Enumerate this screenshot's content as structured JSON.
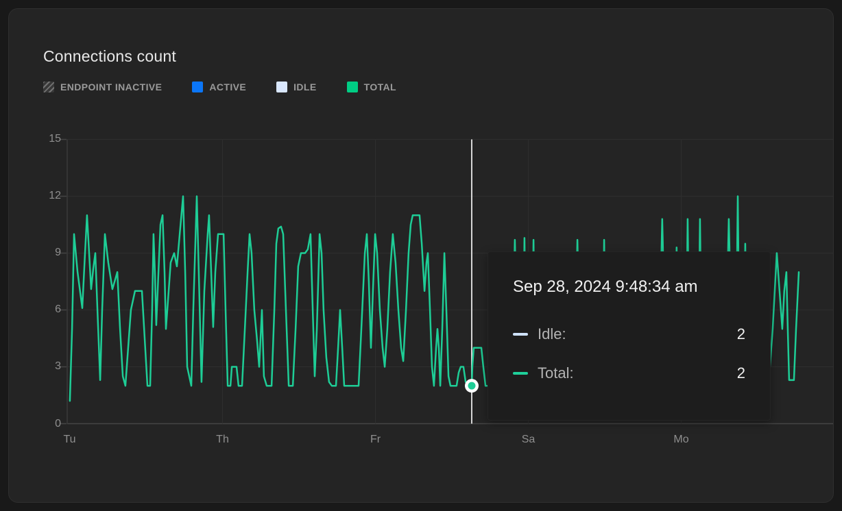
{
  "card": {
    "title": "Connections count"
  },
  "legend": {
    "items": [
      {
        "label": "ENDPOINT INACTIVE",
        "swatch": "hatched",
        "color": "#6f6f6f"
      },
      {
        "label": "ACTIVE",
        "swatch": "solid",
        "color": "#0b76f8"
      },
      {
        "label": "IDLE",
        "swatch": "solid",
        "color": "#d9e7fd"
      },
      {
        "label": "TOTAL",
        "swatch": "solid",
        "color": "#00cd84"
      }
    ]
  },
  "tooltip": {
    "title": "Sep 28, 2024 9:48:34 am",
    "rows": [
      {
        "label": "Idle:",
        "value": "2",
        "color": "#cfe2fc"
      },
      {
        "label": "Total:",
        "value": "2",
        "color": "#1fd09a"
      }
    ]
  },
  "axes": {
    "y_ticks": [
      0,
      3,
      6,
      9,
      12,
      15
    ],
    "x_ticks": [
      {
        "label": "Tu",
        "pos": 0
      },
      {
        "label": "Th",
        "pos": 1
      },
      {
        "label": "Fr",
        "pos": 2
      },
      {
        "label": "Sa",
        "pos": 3
      },
      {
        "label": "Mo",
        "pos": 4
      }
    ]
  },
  "colors": {
    "crosshair": "#d8d8d8",
    "grid": "#2e2e2e",
    "axis": "#454545",
    "line": "#1ecd96",
    "marker_ring": "#ffffff"
  },
  "chart_data": {
    "type": "line",
    "title": "Connections count",
    "xlabel": "",
    "ylabel": "",
    "ylim": [
      0,
      15
    ],
    "y_ticks": [
      0,
      3,
      6,
      9,
      12,
      15
    ],
    "x_tick_labels": [
      "Tu",
      "Th",
      "Fr",
      "Sa",
      "Mo"
    ],
    "x_unit": "x measured in axis-tick intervals: Tu=0, Th=1, Fr=2, Sa=3, Mo=4",
    "grid": true,
    "legend_position": "top",
    "legend_entries": [
      "ENDPOINT INACTIVE",
      "ACTIVE",
      "IDLE",
      "TOTAL"
    ],
    "selected_point": {
      "x": 2.63,
      "timestamp": "Sep 28, 2024 9:48:34 am",
      "series_values": {
        "Idle": 2,
        "Total": 2
      }
    },
    "series": [
      {
        "name": "Total",
        "color": "#1ecd96",
        "points": [
          [
            0.002,
            1.2
          ],
          [
            0.016,
            5
          ],
          [
            0.029,
            10
          ],
          [
            0.052,
            8
          ],
          [
            0.083,
            6.1
          ],
          [
            0.101,
            9
          ],
          [
            0.114,
            11
          ],
          [
            0.128,
            9
          ],
          [
            0.141,
            7.1
          ],
          [
            0.155,
            8.2
          ],
          [
            0.168,
            9
          ],
          [
            0.182,
            6
          ],
          [
            0.2,
            2.3
          ],
          [
            0.213,
            6
          ],
          [
            0.231,
            10
          ],
          [
            0.253,
            8.5
          ],
          [
            0.28,
            7.1
          ],
          [
            0.298,
            7.6
          ],
          [
            0.312,
            8
          ],
          [
            0.33,
            5
          ],
          [
            0.348,
            2.5
          ],
          [
            0.365,
            2
          ],
          [
            0.383,
            4
          ],
          [
            0.401,
            6
          ],
          [
            0.428,
            7
          ],
          [
            0.473,
            7
          ],
          [
            0.491,
            4.5
          ],
          [
            0.509,
            2
          ],
          [
            0.527,
            2
          ],
          [
            0.54,
            6
          ],
          [
            0.549,
            10
          ],
          [
            0.558,
            8
          ],
          [
            0.567,
            5.2
          ],
          [
            0.581,
            8
          ],
          [
            0.594,
            10.5
          ],
          [
            0.608,
            11
          ],
          [
            0.621,
            8
          ],
          [
            0.63,
            5
          ],
          [
            0.648,
            7
          ],
          [
            0.661,
            8.5
          ],
          [
            0.684,
            9
          ],
          [
            0.702,
            8.3
          ],
          [
            0.72,
            10
          ],
          [
            0.742,
            12
          ],
          [
            0.756,
            8
          ],
          [
            0.769,
            3
          ],
          [
            0.796,
            2
          ],
          [
            0.809,
            6
          ],
          [
            0.832,
            12
          ],
          [
            0.845,
            8
          ],
          [
            0.863,
            2.2
          ],
          [
            0.881,
            7
          ],
          [
            0.903,
            10
          ],
          [
            0.912,
            11
          ],
          [
            0.926,
            8
          ],
          [
            0.939,
            5.1
          ],
          [
            0.953,
            8
          ],
          [
            0.971,
            10
          ],
          [
            1.007,
            10
          ],
          [
            1.02,
            6
          ],
          [
            1.034,
            2
          ],
          [
            1.052,
            2
          ],
          [
            1.061,
            3
          ],
          [
            1.092,
            3
          ],
          [
            1.105,
            2
          ],
          [
            1.128,
            2
          ],
          [
            1.146,
            5
          ],
          [
            1.164,
            8
          ],
          [
            1.177,
            10
          ],
          [
            1.19,
            9
          ],
          [
            1.208,
            6
          ],
          [
            1.226,
            4.4
          ],
          [
            1.24,
            3
          ],
          [
            1.258,
            6
          ],
          [
            1.271,
            2.5
          ],
          [
            1.289,
            2
          ],
          [
            1.321,
            2
          ],
          [
            1.339,
            6
          ],
          [
            1.352,
            9.5
          ],
          [
            1.365,
            10.3
          ],
          [
            1.383,
            10.4
          ],
          [
            1.397,
            10
          ],
          [
            1.415,
            6
          ],
          [
            1.433,
            2
          ],
          [
            1.46,
            2
          ],
          [
            1.478,
            5
          ],
          [
            1.495,
            8.3
          ],
          [
            1.513,
            9
          ],
          [
            1.54,
            9
          ],
          [
            1.558,
            9.2
          ],
          [
            1.576,
            10
          ],
          [
            1.59,
            6
          ],
          [
            1.603,
            2.5
          ],
          [
            1.617,
            5
          ],
          [
            1.635,
            10
          ],
          [
            1.648,
            9
          ],
          [
            1.661,
            6
          ],
          [
            1.679,
            3.5
          ],
          [
            1.697,
            2.2
          ],
          [
            1.715,
            2
          ],
          [
            1.742,
            2
          ],
          [
            1.756,
            4
          ],
          [
            1.769,
            6
          ],
          [
            1.783,
            4
          ],
          [
            1.796,
            2
          ],
          [
            1.828,
            2
          ],
          [
            1.859,
            2
          ],
          [
            1.89,
            2
          ],
          [
            1.908,
            5
          ],
          [
            1.931,
            9
          ],
          [
            1.944,
            10
          ],
          [
            1.957,
            7.5
          ],
          [
            1.971,
            4
          ],
          [
            1.984,
            7
          ],
          [
            1.998,
            10
          ],
          [
            2.011,
            9
          ],
          [
            2.029,
            6
          ],
          [
            2.047,
            4
          ],
          [
            2.061,
            3
          ],
          [
            2.078,
            5
          ],
          [
            2.096,
            8
          ],
          [
            2.114,
            10
          ],
          [
            2.132,
            8.5
          ],
          [
            2.15,
            6
          ],
          [
            2.168,
            4
          ],
          [
            2.182,
            3.3
          ],
          [
            2.2,
            6
          ],
          [
            2.217,
            9
          ],
          [
            2.231,
            10.5
          ],
          [
            2.244,
            11
          ],
          [
            2.289,
            11
          ],
          [
            2.303,
            9.5
          ],
          [
            2.321,
            7
          ],
          [
            2.334,
            8.5
          ],
          [
            2.343,
            9
          ],
          [
            2.357,
            6
          ],
          [
            2.37,
            3
          ],
          [
            2.383,
            2
          ],
          [
            2.397,
            4
          ],
          [
            2.406,
            5
          ],
          [
            2.415,
            4
          ],
          [
            2.424,
            2
          ],
          [
            2.437,
            5
          ],
          [
            2.451,
            9
          ],
          [
            2.464,
            6
          ],
          [
            2.478,
            2.5
          ],
          [
            2.491,
            2
          ],
          [
            2.531,
            2
          ],
          [
            2.545,
            2.7
          ],
          [
            2.558,
            3
          ],
          [
            2.576,
            3
          ],
          [
            2.59,
            2.2
          ],
          [
            2.608,
            2
          ],
          [
            2.63,
            2
          ],
          [
            2.634,
            3
          ],
          [
            2.643,
            4
          ],
          [
            2.693,
            4
          ],
          [
            2.706,
            3
          ],
          [
            2.72,
            2
          ],
          [
            2.885,
            2
          ],
          [
            2.899,
            5
          ],
          [
            2.912,
            9.7
          ],
          [
            2.926,
            5
          ],
          [
            2.939,
            2
          ],
          [
            2.962,
            2
          ],
          [
            2.975,
            9.8
          ],
          [
            2.989,
            2
          ],
          [
            3.02,
            2
          ],
          [
            3.034,
            9.7
          ],
          [
            3.047,
            2
          ],
          [
            3.294,
            2
          ],
          [
            3.307,
            5
          ],
          [
            3.321,
            9.7
          ],
          [
            3.334,
            5
          ],
          [
            3.348,
            2
          ],
          [
            3.482,
            2
          ],
          [
            3.496,
            9.7
          ],
          [
            3.509,
            2
          ],
          [
            3.85,
            2
          ],
          [
            3.863,
            6
          ],
          [
            3.876,
            10.8
          ],
          [
            3.89,
            6
          ],
          [
            3.903,
            2
          ],
          [
            3.957,
            2
          ],
          [
            3.97,
            9.3
          ],
          [
            3.984,
            2
          ],
          [
            4.029,
            2
          ],
          [
            4.042,
            10.8
          ],
          [
            4.056,
            2
          ],
          [
            4.11,
            2
          ],
          [
            4.123,
            10.8
          ],
          [
            4.136,
            2
          ],
          [
            4.284,
            2
          ],
          [
            4.298,
            6
          ],
          [
            4.311,
            10.8
          ],
          [
            4.325,
            6
          ],
          [
            4.338,
            2
          ],
          [
            4.356,
            2
          ],
          [
            4.37,
            12
          ],
          [
            4.383,
            2
          ],
          [
            4.405,
            2
          ],
          [
            4.419,
            9.5
          ],
          [
            4.432,
            2
          ],
          [
            4.473,
            2
          ],
          [
            4.571,
            2
          ],
          [
            4.598,
            5
          ],
          [
            4.625,
            9
          ],
          [
            4.643,
            7
          ],
          [
            4.661,
            5
          ],
          [
            4.674,
            7
          ],
          [
            4.688,
            8
          ],
          [
            4.697,
            5
          ],
          [
            4.706,
            2.3
          ],
          [
            4.737,
            2.3
          ],
          [
            4.751,
            5
          ],
          [
            4.769,
            8
          ]
        ]
      }
    ]
  }
}
